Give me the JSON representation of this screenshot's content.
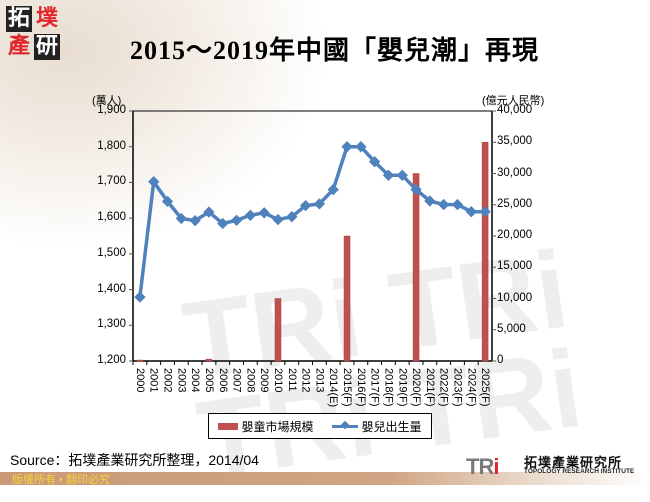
{
  "header": {
    "title": "2015～2019年中國「嬰兒潮」再現",
    "logo_chars": [
      "拓",
      "墣",
      "產",
      "研"
    ]
  },
  "chart_data": {
    "type": "bar+line",
    "title": "2015～2019年中國「嬰兒潮」再現",
    "categories": [
      "2000",
      "2001",
      "2002",
      "2003",
      "2004",
      "2005",
      "2006",
      "2007",
      "2008",
      "2009",
      "2010",
      "2011",
      "2012",
      "2013",
      "2014(E)",
      "2015(F)",
      "2016(F)",
      "2017(F)",
      "2018(F)",
      "2019(F)",
      "2020(F)",
      "2021(F)",
      "2022(F)",
      "2023(F)",
      "2024(F)",
      "2025(F)"
    ],
    "y_left": {
      "label": "(萬人)",
      "min": 1200,
      "max": 1900,
      "ticks": [
        "1,200",
        "1,300",
        "1,400",
        "1,500",
        "1,600",
        "1,700",
        "1,800",
        "1,900"
      ]
    },
    "y_right": {
      "label": "(億元人民幣)",
      "min": 0,
      "max": 40000,
      "ticks": [
        "0",
        "5,000",
        "10,000",
        "15,000",
        "20,000",
        "25,000",
        "30,000",
        "35,000",
        "40,000"
      ]
    },
    "series": [
      {
        "name": "嬰童市場規模",
        "type": "bar",
        "axis": "right",
        "color": "#c0504d",
        "values": [
          150,
          null,
          null,
          null,
          null,
          300,
          null,
          null,
          null,
          null,
          10000,
          null,
          null,
          null,
          null,
          20000,
          null,
          null,
          null,
          null,
          30000,
          null,
          null,
          null,
          null,
          35000
        ]
      },
      {
        "name": "嬰兒出生量",
        "type": "line",
        "axis": "left",
        "color": "#4f81bd",
        "values": [
          1379,
          1702,
          1647,
          1599,
          1593,
          1617,
          1585,
          1594,
          1608,
          1615,
          1596,
          1604,
          1635,
          1640,
          1680,
          1800,
          1800,
          1758,
          1720,
          1720,
          1680,
          1648,
          1638,
          1638,
          1618,
          1618
        ]
      }
    ],
    "legend_position": "bottom",
    "grid": false
  },
  "legend": {
    "bar_label": "嬰童市場規模",
    "line_label": "嬰兒出生量"
  },
  "footer": {
    "source": "Source：拓墣產業研究所整理，2014/04",
    "copyright": "版權所有 • 翻印必究",
    "brand_short": "TRI",
    "brand_cn": "拓墣產業研究所",
    "brand_en": "TOPOLOGY RESEARCH INSTITUTE"
  }
}
